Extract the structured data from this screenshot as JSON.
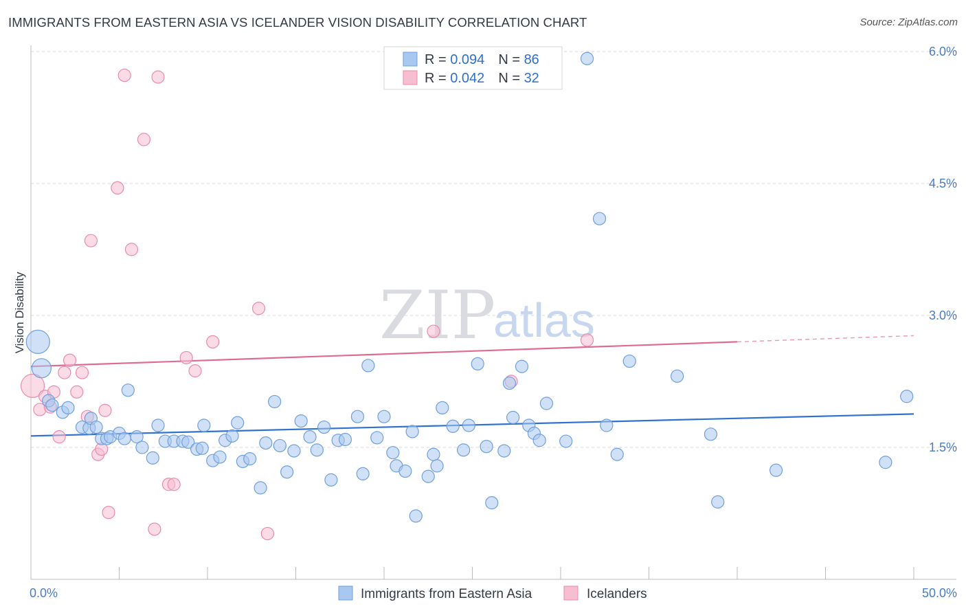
{
  "header": {
    "title": "IMMIGRANTS FROM EASTERN ASIA VS ICELANDER VISION DISABILITY CORRELATION CHART",
    "source": "Source: ZipAtlas.com"
  },
  "watermark": {
    "zip": "ZIP",
    "atlas": "atlas"
  },
  "colors": {
    "blue_fill": "#a9c8f0",
    "blue_stroke": "#6f9fdc",
    "blue_line": "#2f72cf",
    "pink_fill": "#f7bdd0",
    "pink_stroke": "#e98bab",
    "pink_line": "#e06b92",
    "grid": "#d8d8d8",
    "tick_text": "#4a7cc4"
  },
  "legend": {
    "rows": [
      {
        "r_label": "R = ",
        "r_value": "0.094",
        "n_label": "N = ",
        "n_value": "86"
      },
      {
        "r_label": "R = ",
        "r_value": "0.042",
        "n_label": "N = ",
        "n_value": "32"
      }
    ]
  },
  "chart_data": {
    "type": "scatter",
    "title": "IMMIGRANTS FROM EASTERN ASIA VS ICELANDER VISION DISABILITY CORRELATION CHART",
    "xlabel": "",
    "ylabel": "Vision Disability",
    "xlim": [
      0,
      50
    ],
    "ylim": [
      0,
      6.2
    ],
    "x_ticks": [
      0,
      5,
      10,
      15,
      20,
      25,
      30,
      35,
      40,
      45,
      50
    ],
    "x_tick_labels": [
      {
        "value": 0,
        "label": "0.0%"
      },
      {
        "value": 50,
        "label": "50.0%"
      }
    ],
    "y_ticks": [
      {
        "value": 1.5,
        "label": "1.5%"
      },
      {
        "value": 3.0,
        "label": "3.0%"
      },
      {
        "value": 4.5,
        "label": "4.5%"
      },
      {
        "value": 6.0,
        "label": "6.0%"
      }
    ],
    "grid": true,
    "legend_position": "top-center",
    "series": [
      {
        "name": "Immigrants from Eastern Asia",
        "color": "#a9c8f0",
        "trend": {
          "x": [
            0,
            50
          ],
          "y": [
            1.63,
            1.88
          ]
        },
        "points": [
          {
            "x": 0.4,
            "y": 2.7,
            "s": 3
          },
          {
            "x": 0.6,
            "y": 2.4,
            "s": 2
          },
          {
            "x": 1.0,
            "y": 2.03
          },
          {
            "x": 1.2,
            "y": 1.98
          },
          {
            "x": 1.8,
            "y": 1.9
          },
          {
            "x": 2.1,
            "y": 1.95
          },
          {
            "x": 2.9,
            "y": 1.73
          },
          {
            "x": 3.3,
            "y": 1.72
          },
          {
            "x": 3.4,
            "y": 1.83
          },
          {
            "x": 3.7,
            "y": 1.73
          },
          {
            "x": 4.0,
            "y": 1.6
          },
          {
            "x": 4.3,
            "y": 1.6
          },
          {
            "x": 4.5,
            "y": 1.62
          },
          {
            "x": 5.0,
            "y": 1.66
          },
          {
            "x": 5.3,
            "y": 1.6
          },
          {
            "x": 5.5,
            "y": 2.15
          },
          {
            "x": 6.0,
            "y": 1.62
          },
          {
            "x": 6.3,
            "y": 1.5
          },
          {
            "x": 6.9,
            "y": 1.38
          },
          {
            "x": 7.2,
            "y": 1.75
          },
          {
            "x": 7.6,
            "y": 1.57
          },
          {
            "x": 8.1,
            "y": 1.57
          },
          {
            "x": 8.6,
            "y": 1.57
          },
          {
            "x": 8.9,
            "y": 1.56
          },
          {
            "x": 9.4,
            "y": 1.48
          },
          {
            "x": 9.7,
            "y": 1.49
          },
          {
            "x": 9.8,
            "y": 1.75
          },
          {
            "x": 10.3,
            "y": 1.35
          },
          {
            "x": 10.7,
            "y": 1.39
          },
          {
            "x": 11.0,
            "y": 1.58
          },
          {
            "x": 11.4,
            "y": 1.63
          },
          {
            "x": 11.7,
            "y": 1.78
          },
          {
            "x": 12.0,
            "y": 1.34
          },
          {
            "x": 12.4,
            "y": 1.37
          },
          {
            "x": 13.0,
            "y": 1.04
          },
          {
            "x": 13.3,
            "y": 1.55
          },
          {
            "x": 13.8,
            "y": 2.02
          },
          {
            "x": 14.1,
            "y": 1.52
          },
          {
            "x": 14.5,
            "y": 1.22
          },
          {
            "x": 14.9,
            "y": 1.46
          },
          {
            "x": 15.3,
            "y": 1.8
          },
          {
            "x": 15.8,
            "y": 1.62
          },
          {
            "x": 16.2,
            "y": 1.47
          },
          {
            "x": 16.6,
            "y": 1.73
          },
          {
            "x": 17.0,
            "y": 1.13
          },
          {
            "x": 17.4,
            "y": 1.58
          },
          {
            "x": 17.8,
            "y": 1.59
          },
          {
            "x": 18.5,
            "y": 1.85
          },
          {
            "x": 18.8,
            "y": 1.2
          },
          {
            "x": 19.1,
            "y": 2.43
          },
          {
            "x": 19.6,
            "y": 1.61
          },
          {
            "x": 20.0,
            "y": 1.85
          },
          {
            "x": 20.5,
            "y": 1.44
          },
          {
            "x": 20.7,
            "y": 1.29
          },
          {
            "x": 21.2,
            "y": 1.23
          },
          {
            "x": 21.6,
            "y": 1.68
          },
          {
            "x": 21.8,
            "y": 0.72
          },
          {
            "x": 22.5,
            "y": 1.17
          },
          {
            "x": 22.8,
            "y": 1.42
          },
          {
            "x": 23.0,
            "y": 1.29
          },
          {
            "x": 23.3,
            "y": 1.95
          },
          {
            "x": 23.9,
            "y": 1.74
          },
          {
            "x": 24.5,
            "y": 1.47
          },
          {
            "x": 24.8,
            "y": 1.75
          },
          {
            "x": 25.3,
            "y": 2.45
          },
          {
            "x": 25.8,
            "y": 1.51
          },
          {
            "x": 26.1,
            "y": 0.87
          },
          {
            "x": 26.8,
            "y": 1.46
          },
          {
            "x": 27.1,
            "y": 2.23
          },
          {
            "x": 27.3,
            "y": 1.84
          },
          {
            "x": 27.8,
            "y": 2.42
          },
          {
            "x": 28.2,
            "y": 1.75
          },
          {
            "x": 28.5,
            "y": 1.66
          },
          {
            "x": 28.8,
            "y": 1.58
          },
          {
            "x": 29.2,
            "y": 2.0
          },
          {
            "x": 30.3,
            "y": 1.57
          },
          {
            "x": 31.5,
            "y": 5.92
          },
          {
            "x": 32.2,
            "y": 4.1
          },
          {
            "x": 32.6,
            "y": 1.75
          },
          {
            "x": 33.2,
            "y": 1.42
          },
          {
            "x": 33.9,
            "y": 2.48
          },
          {
            "x": 36.6,
            "y": 2.31
          },
          {
            "x": 38.5,
            "y": 1.65
          },
          {
            "x": 38.9,
            "y": 0.88
          },
          {
            "x": 42.2,
            "y": 1.24
          },
          {
            "x": 48.4,
            "y": 1.33
          },
          {
            "x": 49.6,
            "y": 2.08
          }
        ]
      },
      {
        "name": "Icelanders",
        "color": "#f7bdd0",
        "trend": {
          "x": [
            0,
            40
          ],
          "y": [
            2.42,
            2.7
          ]
        },
        "trend_dashed": {
          "x": [
            40,
            50
          ],
          "y": [
            2.7,
            2.77
          ]
        },
        "points": [
          {
            "x": 0.1,
            "y": 2.2,
            "s": 3
          },
          {
            "x": 0.5,
            "y": 1.93
          },
          {
            "x": 0.8,
            "y": 2.08
          },
          {
            "x": 1.1,
            "y": 1.96
          },
          {
            "x": 1.3,
            "y": 2.13
          },
          {
            "x": 1.6,
            "y": 1.62
          },
          {
            "x": 1.9,
            "y": 2.35
          },
          {
            "x": 2.2,
            "y": 2.49
          },
          {
            "x": 2.6,
            "y": 2.13
          },
          {
            "x": 2.9,
            "y": 2.35
          },
          {
            "x": 3.2,
            "y": 1.85
          },
          {
            "x": 3.4,
            "y": 3.85
          },
          {
            "x": 3.8,
            "y": 1.42
          },
          {
            "x": 4.0,
            "y": 1.48
          },
          {
            "x": 4.2,
            "y": 1.92
          },
          {
            "x": 4.4,
            "y": 0.76
          },
          {
            "x": 4.9,
            "y": 4.45
          },
          {
            "x": 5.3,
            "y": 5.73
          },
          {
            "x": 5.7,
            "y": 3.75
          },
          {
            "x": 6.4,
            "y": 5.0
          },
          {
            "x": 7.0,
            "y": 0.57
          },
          {
            "x": 7.2,
            "y": 5.71
          },
          {
            "x": 7.8,
            "y": 1.08
          },
          {
            "x": 8.1,
            "y": 1.08
          },
          {
            "x": 8.8,
            "y": 2.52
          },
          {
            "x": 9.3,
            "y": 2.37
          },
          {
            "x": 10.3,
            "y": 2.7
          },
          {
            "x": 12.9,
            "y": 3.08
          },
          {
            "x": 13.4,
            "y": 0.52
          },
          {
            "x": 22.8,
            "y": 2.82
          },
          {
            "x": 27.2,
            "y": 2.25
          },
          {
            "x": 31.5,
            "y": 2.72
          }
        ]
      }
    ]
  }
}
